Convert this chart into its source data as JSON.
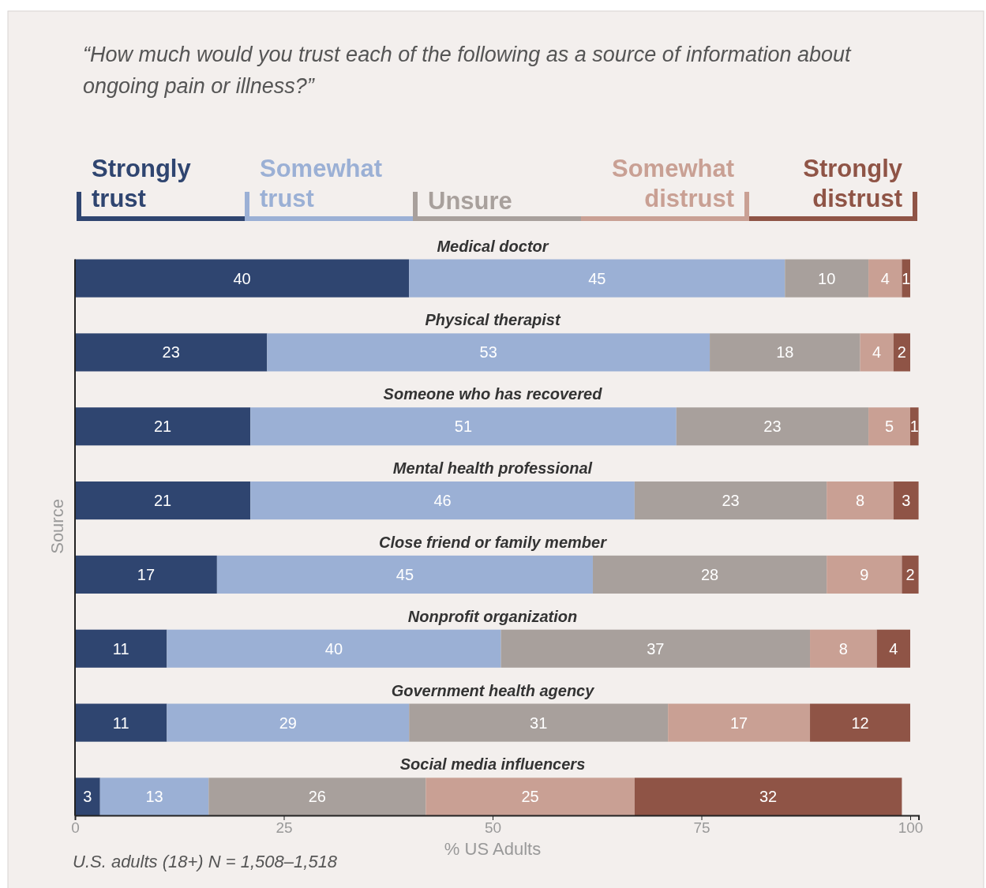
{
  "chart_data": {
    "type": "bar",
    "orientation": "horizontal",
    "stacked": true,
    "title": "“How much would you trust each of the following as a source of information about ongoing pain or illness?”",
    "xlabel": "% US Adults",
    "ylabel": "Source",
    "categories": [
      "Medical doctor",
      "Physical therapist",
      "Someone who has recovered",
      "Mental health professional",
      "Close friend or family member",
      "Nonprofit organization",
      "Government health agency",
      "Social media influencers"
    ],
    "series": [
      {
        "name": "Strongly trust",
        "color": "#2f4570",
        "values": [
          40,
          23,
          21,
          21,
          17,
          11,
          11,
          3
        ]
      },
      {
        "name": "Somewhat trust",
        "color": "#9bb0d5",
        "values": [
          45,
          53,
          51,
          46,
          45,
          40,
          29,
          13
        ]
      },
      {
        "name": "Unsure",
        "color": "#a8a09c",
        "values": [
          10,
          18,
          23,
          23,
          28,
          37,
          31,
          26
        ]
      },
      {
        "name": "Somewhat distrust",
        "color": "#c9a094",
        "values": [
          4,
          4,
          5,
          8,
          9,
          8,
          17,
          25
        ]
      },
      {
        "name": "Strongly distrust",
        "color": "#8f5446",
        "values": [
          1,
          2,
          1,
          3,
          2,
          4,
          12,
          32
        ]
      }
    ],
    "xlim": [
      0,
      101
    ],
    "xticks": [
      0,
      25,
      50,
      75,
      100
    ],
    "data_labels": true,
    "legend": "top",
    "annotations": [
      "U.S. adults (18+) N = 1,508–1,518"
    ]
  }
}
